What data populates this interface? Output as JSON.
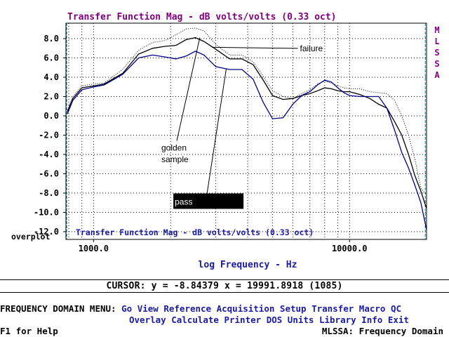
{
  "chart_data": {
    "type": "line",
    "title": "Transfer Function Mag - dB volts/volts (0.33 oct)",
    "inner_title": "Transfer Function Mag - dB volts/volts (0.33 oct)",
    "xlabel": "log Frequency - Hz",
    "side_label": "MLSSA",
    "overplot_label": "overplot",
    "xscale": "log",
    "xlim": [
      780,
      19991.8918
    ],
    "ylim": [
      -12.8,
      9.6
    ],
    "grid": true,
    "y_ticks": [
      8.0,
      6.0,
      4.0,
      2.0,
      0.0,
      -2.0,
      -4.0,
      -6.0,
      -8.0,
      -10.0,
      -12.0
    ],
    "y_tick_labels": [
      "8.0",
      "6.0",
      "4.0",
      "2.0",
      "0.0",
      "-2.0",
      "-4.0",
      "-6.0",
      "-8.0",
      "-10.0",
      "-12.0"
    ],
    "x_ticks": [
      1000,
      10000
    ],
    "x_tick_labels": [
      "1000.0",
      "10000.0"
    ],
    "colors": {
      "title": "#800080",
      "axis_label": "#1a1aa0",
      "frame": "#000000",
      "grid": "#000000",
      "limit_line": "#008080",
      "black_curve": "#000000",
      "blue_curve": "#00008b"
    },
    "series": [
      {
        "style": "dotted",
        "color": "#000000",
        "x": [
          790,
          830,
          900,
          1000,
          1100,
          1300,
          1500,
          1700,
          1900,
          2100,
          2300,
          2500,
          2700,
          3000,
          3400,
          3800,
          4200,
          4600,
          5000,
          5500,
          6000,
          6500,
          7000,
          7500,
          8000,
          8500,
          9000,
          9500,
          10000,
          11000,
          12000,
          13000,
          14000,
          15000,
          16000,
          17000,
          18000,
          19000,
          19990
        ],
        "y": [
          0.6,
          2.0,
          3.1,
          3.3,
          3.4,
          4.8,
          6.8,
          7.6,
          7.8,
          8.4,
          9.0,
          9.1,
          8.8,
          7.4,
          6.3,
          6.3,
          5.6,
          4.1,
          2.6,
          2.0,
          1.8,
          2.3,
          2.7,
          3.3,
          3.6,
          3.4,
          3.1,
          2.9,
          2.8,
          2.8,
          2.5,
          2.4,
          2.3,
          1.6,
          0.0,
          -2.0,
          -4.5,
          -7.5,
          -8.2
        ]
      },
      {
        "style": "solid",
        "color": "#000000",
        "x": [
          790,
          830,
          900,
          1000,
          1100,
          1300,
          1500,
          1700,
          1900,
          2100,
          2300,
          2500,
          2700,
          3000,
          3400,
          3800,
          4200,
          4600,
          5000,
          5500,
          6000,
          6500,
          7000,
          7500,
          8000,
          8500,
          9000,
          9500,
          10000,
          11000,
          12000,
          13000,
          14000,
          15000,
          16000,
          17000,
          18000,
          19000,
          19990
        ],
        "y": [
          0.4,
          1.8,
          2.9,
          3.1,
          3.3,
          4.4,
          6.4,
          7.0,
          7.2,
          7.3,
          7.9,
          8.1,
          7.7,
          6.9,
          5.9,
          5.9,
          5.3,
          3.7,
          2.1,
          1.7,
          1.8,
          2.1,
          2.3,
          2.6,
          2.9,
          2.8,
          2.6,
          2.5,
          2.5,
          2.2,
          1.8,
          1.2,
          0.8,
          -0.6,
          -2.0,
          -4.0,
          -6.2,
          -7.8,
          -9.6
        ]
      },
      {
        "style": "solid",
        "color": "#00008b",
        "x": [
          790,
          830,
          900,
          1000,
          1100,
          1300,
          1500,
          1700,
          1900,
          2100,
          2300,
          2500,
          2700,
          3000,
          3400,
          3800,
          4200,
          4600,
          5000,
          5500,
          6000,
          6500,
          7000,
          7500,
          8000,
          8500,
          9000,
          9500,
          10000,
          11000,
          12000,
          13000,
          14000,
          15000,
          16000,
          17000,
          18000,
          19000,
          19990
        ],
        "y": [
          0.2,
          1.6,
          2.7,
          3.0,
          3.2,
          4.3,
          6.0,
          6.3,
          6.1,
          5.9,
          6.2,
          6.7,
          6.3,
          5.1,
          4.8,
          4.8,
          3.8,
          1.4,
          -0.3,
          -0.2,
          1.2,
          2.1,
          2.5,
          3.2,
          3.7,
          3.5,
          2.9,
          2.4,
          2.1,
          2.0,
          2.0,
          2.0,
          0.8,
          -1.5,
          -3.8,
          -5.4,
          -7.2,
          -9.0,
          -11.8
        ]
      }
    ],
    "annotations": [
      {
        "text": "failure",
        "x": 6400,
        "y": 6.7,
        "arrow_to": {
          "x": 2900,
          "y": 7.1
        }
      },
      {
        "text": "golden",
        "x": 1840,
        "y": -3.6,
        "arrow_to": {
          "x": 2600,
          "y": 8.1
        }
      },
      {
        "text": "sample",
        "x": 1840,
        "y": -4.8
      },
      {
        "text": "pass",
        "x": 2050,
        "y": -9.2,
        "boxed": true,
        "arrow_to": {
          "x": 3300,
          "y": 4.9
        }
      }
    ]
  },
  "cursor": {
    "text": "CURSOR: y = -8.84379 x = 19991.8918 (1085)"
  },
  "menu": {
    "title": "FREQUENCY DOMAIN MENU:",
    "row1": [
      {
        "hot": "G",
        "rest": "o"
      },
      {
        "hot": "V",
        "rest": "iew"
      },
      {
        "hot": "R",
        "rest": "eference"
      },
      {
        "hot": "A",
        "rest": "cquisition"
      },
      {
        "hot": "S",
        "rest": "etup"
      },
      {
        "hot": "T",
        "rest": "ransfer"
      },
      {
        "hot": "M",
        "rest": "acro"
      },
      {
        "hot": "Q",
        "rest": "C"
      }
    ],
    "row2": [
      {
        "hot": "O",
        "rest": "verlay"
      },
      {
        "hot": "C",
        "rest": "alculate"
      },
      {
        "hot": "P",
        "rest": "rinter"
      },
      {
        "hot": "D",
        "rest": "OS"
      },
      {
        "hot": "U",
        "rest": "nits"
      },
      {
        "hot": "L",
        "rest": "ibrary"
      },
      {
        "hot": "I",
        "rest": "nfo"
      },
      {
        "hot": "E",
        "rest": "xit"
      }
    ]
  },
  "help": "F1 for Help",
  "status": "MLSSA: Frequency Domain"
}
